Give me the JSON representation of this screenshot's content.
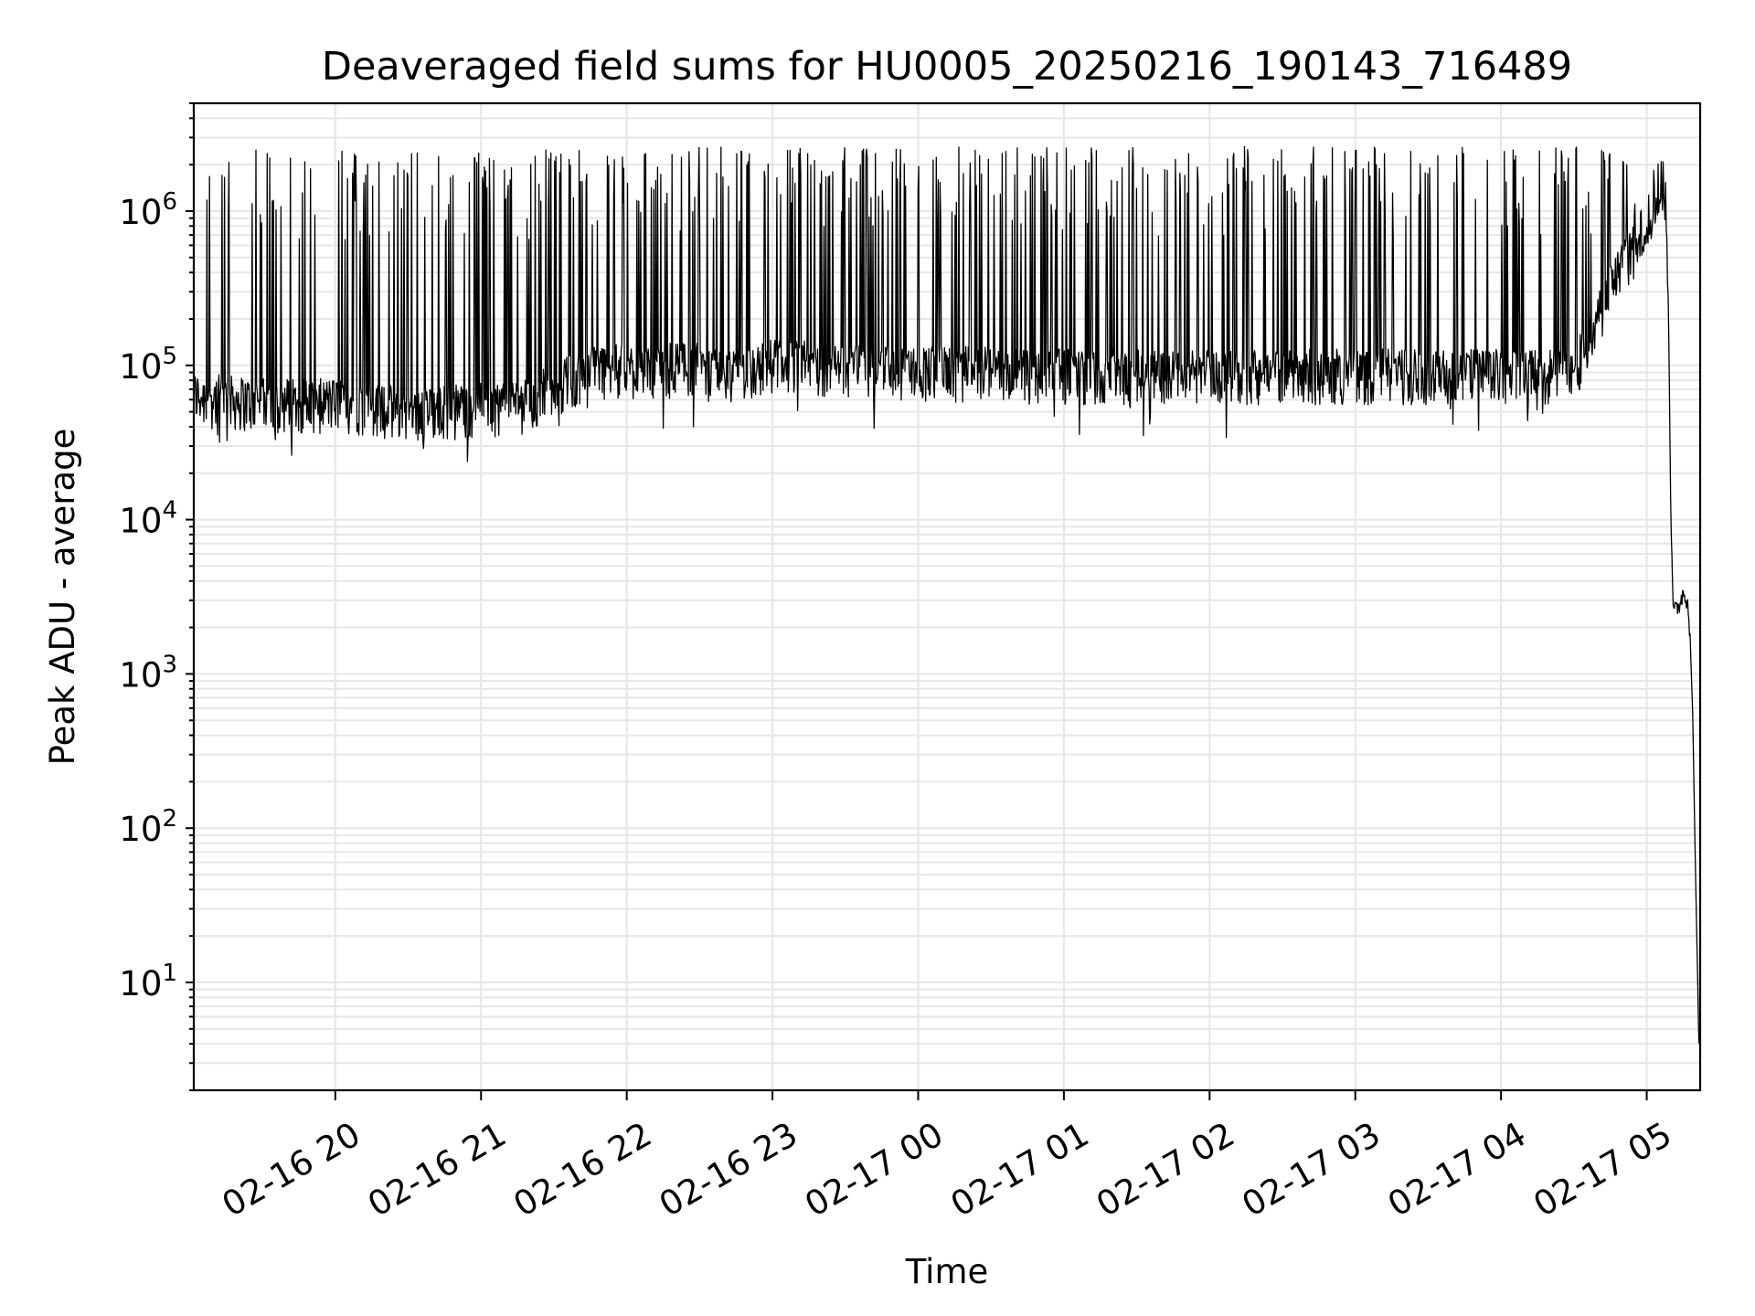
{
  "chart_data": {
    "type": "line",
    "title": "Deaveraged field sums for HU0005_20250216_190143_716489",
    "xlabel": "Time",
    "ylabel": "Peak ADU - average",
    "xscale": "time",
    "yscale": "log",
    "grid": "major and minor, light gray",
    "legend": "none",
    "line_color": "#000000",
    "x_range": [
      "2025-02-16 19:01:43",
      "2025-02-17 05:22:00"
    ],
    "ylim": [
      2,
      5000000
    ],
    "x_ticks": [
      {
        "t": "2025-02-16 20:00",
        "label": "02-16 20"
      },
      {
        "t": "2025-02-16 21:00",
        "label": "02-16 21"
      },
      {
        "t": "2025-02-16 22:00",
        "label": "02-16 22"
      },
      {
        "t": "2025-02-16 23:00",
        "label": "02-16 23"
      },
      {
        "t": "2025-02-17 00:00",
        "label": "02-17 00"
      },
      {
        "t": "2025-02-17 01:00",
        "label": "02-17 01"
      },
      {
        "t": "2025-02-17 02:00",
        "label": "02-17 02"
      },
      {
        "t": "2025-02-17 03:00",
        "label": "02-17 03"
      },
      {
        "t": "2025-02-17 04:00",
        "label": "02-17 04"
      },
      {
        "t": "2025-02-17 05:00",
        "label": "02-17 05"
      }
    ],
    "y_ticks": [
      {
        "value": 10,
        "base": "10",
        "exp": "1"
      },
      {
        "value": 100,
        "base": "10",
        "exp": "2"
      },
      {
        "value": 1000,
        "base": "10",
        "exp": "3"
      },
      {
        "value": 10000,
        "base": "10",
        "exp": "4"
      },
      {
        "value": 100000,
        "base": "10",
        "exp": "5"
      },
      {
        "value": 1000000,
        "base": "10",
        "exp": "6"
      }
    ],
    "series": [
      {
        "baseline_profile": [
          [
            "2025-02-16 19:01:43",
            60000
          ],
          [
            "2025-02-16 19:30",
            55000
          ],
          [
            "2025-02-16 20:00",
            55000
          ],
          [
            "2025-02-16 20:30",
            48000
          ],
          [
            "2025-02-16 21:00",
            52000
          ],
          [
            "2025-02-16 21:20",
            55000
          ],
          [
            "2025-02-16 21:30",
            70000
          ],
          [
            "2025-02-16 21:45",
            90000
          ],
          [
            "2025-02-16 22:30",
            95000
          ],
          [
            "2025-02-16 22:40",
            80000
          ],
          [
            "2025-02-16 23:00",
            100000
          ],
          [
            "2025-02-17 00:00",
            90000
          ],
          [
            "2025-02-17 01:00",
            85000
          ],
          [
            "2025-02-17 02:00",
            85000
          ],
          [
            "2025-02-17 03:00",
            85000
          ],
          [
            "2025-02-17 04:00",
            85000
          ],
          [
            "2025-02-17 04:30",
            85000
          ],
          [
            "2025-02-17 04:40",
            200000
          ],
          [
            "2025-02-17 04:50",
            450000
          ],
          [
            "2025-02-17 05:00",
            650000
          ],
          [
            "2025-02-17 05:04",
            1100000
          ],
          [
            "2025-02-17 05:06",
            1200000
          ],
          [
            "2025-02-17 05:08",
            900000
          ],
          [
            "2025-02-17 05:09",
            200000
          ],
          [
            "2025-02-17 05:10",
            10000
          ],
          [
            "2025-02-17 05:11",
            2500
          ],
          [
            "2025-02-17 05:13",
            2700
          ],
          [
            "2025-02-17 05:15",
            3400
          ],
          [
            "2025-02-17 05:17",
            3000
          ],
          [
            "2025-02-17 05:18",
            1500
          ],
          [
            "2025-02-17 05:19",
            500
          ],
          [
            "2025-02-17 05:20",
            60
          ],
          [
            "2025-02-17 05:21:30",
            4
          ]
        ],
        "spike_peak_range": [
          1000000,
          2500000
        ],
        "spike_window": [
          "2025-02-16 19:01:43",
          "2025-02-17 04:55"
        ],
        "noise_band": [
          0.65,
          1.5
        ]
      }
    ]
  }
}
